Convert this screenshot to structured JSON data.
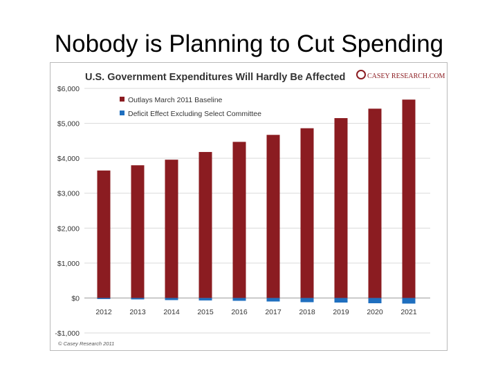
{
  "slide": {
    "title": "Nobody is Planning to Cut Spending"
  },
  "chart_data": {
    "type": "bar",
    "title": "U.S. Government Expenditures Will Hardly Be Affected",
    "brand": "CASEY RESEARCH.COM",
    "footer": "© Casey Research 2011",
    "categories": [
      "2012",
      "2013",
      "2014",
      "2015",
      "2016",
      "2017",
      "2018",
      "2019",
      "2020",
      "2021"
    ],
    "series": [
      {
        "name": "Outlays March 2011 Baseline",
        "color": "#8b1c21",
        "values": [
          3650,
          3800,
          3960,
          4180,
          4470,
          4670,
          4860,
          5150,
          5420,
          5680
        ]
      },
      {
        "name": "Deficit Effect Excluding Select Committee",
        "color": "#1f6fbf",
        "values": [
          -30,
          -40,
          -60,
          -70,
          -80,
          -100,
          -120,
          -130,
          -150,
          -160
        ]
      }
    ],
    "ylim": [
      -1000,
      6000
    ],
    "yticks": [
      6000,
      5000,
      4000,
      3000,
      2000,
      1000,
      0,
      -1000
    ],
    "ytick_labels": [
      "$6,000",
      "$5,000",
      "$4,000",
      "$3,000",
      "$2,000",
      "$1,000",
      "$0",
      "-$1,000"
    ],
    "grid": true,
    "legend": "top-left"
  }
}
